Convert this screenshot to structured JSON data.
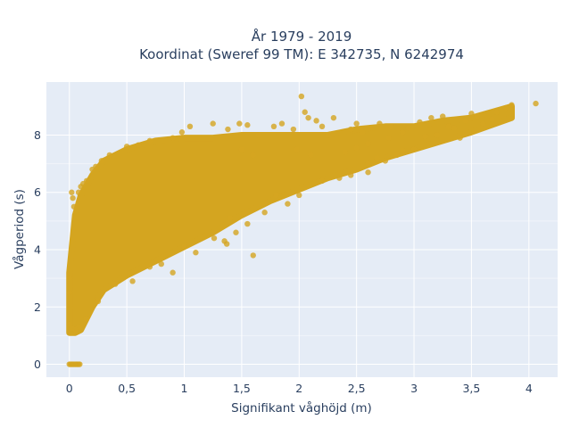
{
  "chart_data": {
    "type": "scatter",
    "title_line1": "År 1979 - 2019",
    "title_line2": "Koordinat (Sweref 99 TM): E 342735, N 6242974",
    "xlabel": "Signifikant våghöjd (m)",
    "ylabel": "Vågperiod (s)",
    "xlim": [
      -0.2,
      4.25
    ],
    "ylim": [
      -0.45,
      9.85
    ],
    "x_ticks": [
      0,
      0.5,
      1,
      1.5,
      2,
      2.5,
      3,
      3.5,
      4
    ],
    "x_tick_labels": [
      "0",
      "0,5",
      "1",
      "1,5",
      "2",
      "2,5",
      "3",
      "3,5",
      "4"
    ],
    "y_ticks": [
      0,
      2,
      4,
      6,
      8
    ],
    "y_tick_labels": [
      "0",
      "2",
      "4",
      "6",
      "8"
    ],
    "grid": true,
    "marker_color": "#d4a520",
    "plot_background": "#e5ecf6",
    "envelope": [
      {
        "x": 0.0,
        "upper": 3.2,
        "lower": 1.1
      },
      {
        "x": 0.05,
        "upper": 5.2,
        "lower": 1.1
      },
      {
        "x": 0.1,
        "upper": 5.9,
        "lower": 1.2
      },
      {
        "x": 0.2,
        "upper": 6.6,
        "lower": 2.0
      },
      {
        "x": 0.3,
        "upper": 7.1,
        "lower": 2.6
      },
      {
        "x": 0.5,
        "upper": 7.5,
        "lower": 3.1
      },
      {
        "x": 0.75,
        "upper": 7.8,
        "lower": 3.6
      },
      {
        "x": 1.0,
        "upper": 7.9,
        "lower": 4.1
      },
      {
        "x": 1.25,
        "upper": 7.9,
        "lower": 4.6
      },
      {
        "x": 1.5,
        "upper": 8.0,
        "lower": 5.2
      },
      {
        "x": 1.75,
        "upper": 8.0,
        "lower": 5.7
      },
      {
        "x": 2.0,
        "upper": 8.0,
        "lower": 6.1
      },
      {
        "x": 2.25,
        "upper": 8.0,
        "lower": 6.5
      },
      {
        "x": 2.5,
        "upper": 8.2,
        "lower": 6.8
      },
      {
        "x": 2.75,
        "upper": 8.3,
        "lower": 7.2
      },
      {
        "x": 3.0,
        "upper": 8.3,
        "lower": 7.5
      },
      {
        "x": 3.25,
        "upper": 8.5,
        "lower": 7.8
      },
      {
        "x": 3.5,
        "upper": 8.6,
        "lower": 8.1
      },
      {
        "x": 3.85,
        "upper": 9.0,
        "lower": 8.6
      }
    ],
    "points": [
      [
        0.0,
        0.0
      ],
      [
        0.01,
        0.0
      ],
      [
        0.02,
        0.0
      ],
      [
        0.03,
        0.0
      ],
      [
        0.04,
        0.0
      ],
      [
        0.05,
        0.0
      ],
      [
        0.06,
        0.0
      ],
      [
        0.07,
        0.0
      ],
      [
        0.08,
        0.0
      ],
      [
        0.09,
        0.0
      ],
      [
        0.02,
        6.0
      ],
      [
        0.04,
        5.5
      ],
      [
        0.03,
        5.8
      ],
      [
        0.08,
        6.0
      ],
      [
        0.1,
        6.2
      ],
      [
        0.15,
        6.4
      ],
      [
        0.2,
        6.8
      ],
      [
        0.23,
        6.9
      ],
      [
        0.12,
        6.3
      ],
      [
        0.28,
        7.1
      ],
      [
        0.35,
        7.3
      ],
      [
        0.5,
        7.6
      ],
      [
        0.6,
        7.65
      ],
      [
        0.7,
        7.8
      ],
      [
        0.9,
        7.9
      ],
      [
        0.98,
        8.1
      ],
      [
        1.05,
        8.3
      ],
      [
        1.25,
        8.4
      ],
      [
        1.38,
        8.2
      ],
      [
        1.48,
        8.4
      ],
      [
        1.55,
        8.35
      ],
      [
        1.65,
        8.0
      ],
      [
        1.78,
        8.3
      ],
      [
        1.85,
        8.4
      ],
      [
        1.95,
        8.2
      ],
      [
        2.02,
        9.35
      ],
      [
        2.05,
        8.8
      ],
      [
        2.08,
        8.6
      ],
      [
        2.15,
        8.5
      ],
      [
        2.2,
        8.3
      ],
      [
        2.25,
        8.0
      ],
      [
        2.3,
        8.6
      ],
      [
        2.45,
        8.2
      ],
      [
        2.5,
        8.4
      ],
      [
        2.55,
        8.1
      ],
      [
        2.7,
        8.4
      ],
      [
        2.8,
        8.3
      ],
      [
        2.9,
        8.1
      ],
      [
        2.95,
        8.25
      ],
      [
        3.05,
        8.45
      ],
      [
        3.15,
        8.6
      ],
      [
        3.25,
        8.65
      ],
      [
        3.3,
        8.3
      ],
      [
        3.35,
        8.25
      ],
      [
        3.45,
        8.5
      ],
      [
        3.5,
        8.75
      ],
      [
        3.55,
        8.65
      ],
      [
        3.6,
        8.4
      ],
      [
        3.68,
        8.55
      ],
      [
        3.72,
        8.8
      ],
      [
        3.8,
        8.95
      ],
      [
        3.85,
        9.05
      ],
      [
        4.06,
        9.1
      ],
      [
        3.4,
        7.9
      ],
      [
        3.0,
        7.5
      ],
      [
        2.6,
        7.0
      ],
      [
        2.2,
        6.4
      ],
      [
        1.8,
        5.9
      ],
      [
        1.4,
        5.1
      ],
      [
        1.0,
        4.1
      ],
      [
        0.7,
        3.4
      ],
      [
        0.4,
        2.8
      ],
      [
        0.25,
        2.2
      ],
      [
        0.15,
        1.6
      ],
      [
        0.08,
        1.3
      ],
      [
        0.05,
        1.2
      ],
      [
        0.02,
        1.25
      ],
      [
        0.0,
        1.4
      ],
      [
        0.0,
        2.5
      ],
      [
        0.0,
        3.0
      ],
      [
        1.37,
        4.2
      ],
      [
        1.6,
        3.8
      ],
      [
        1.55,
        4.9
      ],
      [
        1.45,
        4.6
      ],
      [
        0.9,
        3.2
      ],
      [
        1.1,
        3.9
      ],
      [
        0.55,
        2.9
      ],
      [
        0.8,
        3.5
      ],
      [
        1.26,
        4.4
      ],
      [
        1.7,
        5.3
      ],
      [
        2.0,
        5.9
      ],
      [
        1.9,
        5.6
      ],
      [
        2.35,
        6.5
      ],
      [
        2.45,
        6.6
      ],
      [
        2.6,
        6.7
      ],
      [
        2.68,
        7.2
      ],
      [
        2.75,
        7.1
      ],
      [
        2.85,
        7.3
      ],
      [
        2.9,
        7.45
      ],
      [
        1.35,
        4.3
      ],
      [
        2.4,
        7.4
      ],
      [
        2.5,
        7.55
      ],
      [
        2.6,
        7.7
      ],
      [
        2.78,
        7.9
      ],
      [
        3.1,
        7.95
      ],
      [
        3.2,
        8.0
      ],
      [
        1.5,
        7.5
      ],
      [
        1.6,
        7.3
      ],
      [
        1.98,
        7.5
      ],
      [
        2.1,
        7.3
      ]
    ]
  }
}
